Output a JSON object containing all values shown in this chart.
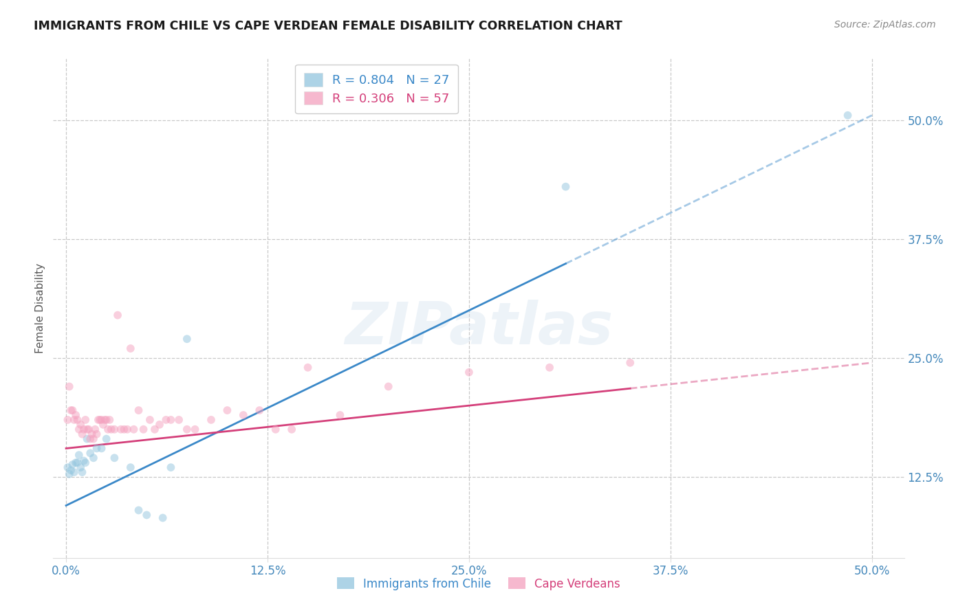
{
  "title": "IMMIGRANTS FROM CHILE VS CAPE VERDEAN FEMALE DISABILITY CORRELATION CHART",
  "source": "Source: ZipAtlas.com",
  "ylabel": "Female Disability",
  "ytick_labels": [
    "12.5%",
    "25.0%",
    "37.5%",
    "50.0%"
  ],
  "ytick_values": [
    0.125,
    0.25,
    0.375,
    0.5
  ],
  "xtick_values": [
    0.0,
    0.125,
    0.25,
    0.375,
    0.5
  ],
  "xlim": [
    -0.008,
    0.52
  ],
  "ylim": [
    0.04,
    0.565
  ],
  "bg_color": "#ffffff",
  "grid_color": "#c8c8c8",
  "series": [
    {
      "name": "Immigrants from Chile",
      "R": 0.804,
      "N": 27,
      "dot_color": "#92c5de",
      "line_color": "#3a88c8",
      "x": [
        0.001,
        0.002,
        0.003,
        0.004,
        0.005,
        0.006,
        0.007,
        0.008,
        0.009,
        0.01,
        0.011,
        0.012,
        0.013,
        0.015,
        0.017,
        0.019,
        0.022,
        0.025,
        0.03,
        0.04,
        0.045,
        0.05,
        0.06,
        0.065,
        0.075,
        0.31,
        0.485
      ],
      "y": [
        0.135,
        0.128,
        0.132,
        0.138,
        0.13,
        0.14,
        0.14,
        0.148,
        0.135,
        0.13,
        0.142,
        0.14,
        0.165,
        0.15,
        0.145,
        0.155,
        0.155,
        0.165,
        0.145,
        0.135,
        0.09,
        0.085,
        0.082,
        0.135,
        0.27,
        0.43,
        0.505
      ],
      "line_x0": 0.0,
      "line_y0": 0.095,
      "line_x1": 0.5,
      "line_y1": 0.505,
      "dash_from": 0.31
    },
    {
      "name": "Cape Verdeans",
      "R": 0.306,
      "N": 57,
      "dot_color": "#f4a0be",
      "line_color": "#d43f7a",
      "x": [
        0.001,
        0.002,
        0.003,
        0.004,
        0.005,
        0.006,
        0.007,
        0.008,
        0.009,
        0.01,
        0.011,
        0.012,
        0.013,
        0.014,
        0.015,
        0.016,
        0.017,
        0.018,
        0.019,
        0.02,
        0.021,
        0.022,
        0.023,
        0.024,
        0.025,
        0.026,
        0.027,
        0.028,
        0.03,
        0.032,
        0.034,
        0.036,
        0.038,
        0.04,
        0.042,
        0.045,
        0.048,
        0.052,
        0.055,
        0.058,
        0.062,
        0.065,
        0.07,
        0.075,
        0.08,
        0.09,
        0.1,
        0.11,
        0.12,
        0.13,
        0.14,
        0.15,
        0.17,
        0.2,
        0.25,
        0.3,
        0.35
      ],
      "y": [
        0.185,
        0.22,
        0.195,
        0.195,
        0.185,
        0.19,
        0.185,
        0.175,
        0.18,
        0.17,
        0.175,
        0.185,
        0.175,
        0.175,
        0.165,
        0.17,
        0.165,
        0.175,
        0.17,
        0.185,
        0.185,
        0.185,
        0.18,
        0.185,
        0.185,
        0.175,
        0.185,
        0.175,
        0.175,
        0.295,
        0.175,
        0.175,
        0.175,
        0.26,
        0.175,
        0.195,
        0.175,
        0.185,
        0.175,
        0.18,
        0.185,
        0.185,
        0.185,
        0.175,
        0.175,
        0.185,
        0.195,
        0.19,
        0.195,
        0.175,
        0.175,
        0.24,
        0.19,
        0.22,
        0.235,
        0.24,
        0.245
      ],
      "line_x0": 0.0,
      "line_y0": 0.155,
      "line_x1": 0.5,
      "line_y1": 0.245,
      "dash_from": 0.35
    }
  ],
  "marker_size": 72,
  "marker_alpha": 0.5,
  "line_width": 2.0,
  "title_color": "#1a1a1a",
  "source_color": "#888888",
  "tick_color": "#4488bb",
  "ylabel_color": "#555555",
  "watermark_text": "ZIPatlas",
  "watermark_color": "#c5d8ea",
  "watermark_alpha": 0.3
}
